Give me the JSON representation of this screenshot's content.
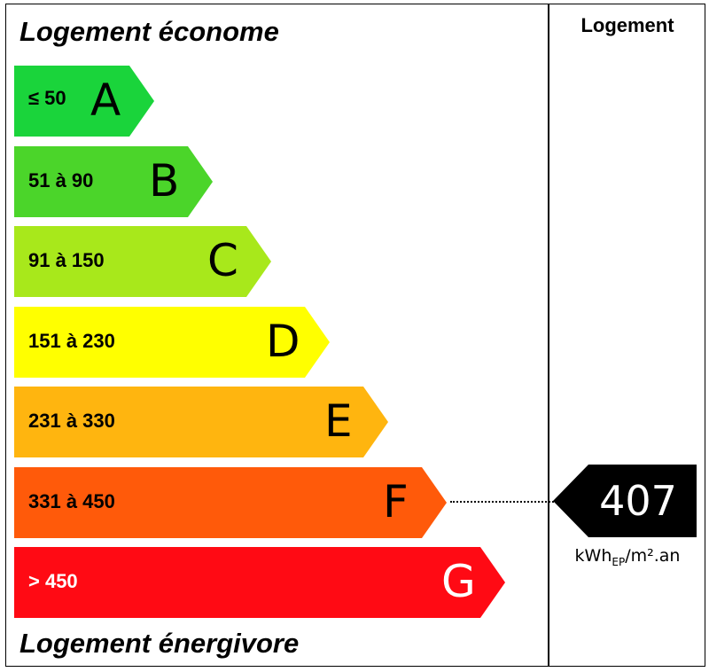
{
  "headings": {
    "top": "Logement économe",
    "bottom": "Logement énergivore",
    "column": "Logement"
  },
  "classes": [
    {
      "letter": "A",
      "range": "≤ 50",
      "color": "#1ad43b",
      "text_color": "#000000"
    },
    {
      "letter": "B",
      "range": "51 à 90",
      "color": "#4bd52a",
      "text_color": "#000000"
    },
    {
      "letter": "C",
      "range": "91 à 150",
      "color": "#a8e81b",
      "text_color": "#000000"
    },
    {
      "letter": "D",
      "range": "151 à 230",
      "color": "#ffff00",
      "text_color": "#000000"
    },
    {
      "letter": "E",
      "range": "231 à 330",
      "color": "#ffb50f",
      "text_color": "#000000"
    },
    {
      "letter": "F",
      "range": "331 à 450",
      "color": "#ff5a0a",
      "text_color": "#000000"
    },
    {
      "letter": "G",
      "range": "> 450",
      "color": "#ff0a14",
      "text_color": "#ffffff"
    }
  ],
  "rating": {
    "value": "407",
    "class": "F",
    "unit_main": "kWh",
    "unit_sub": "EP",
    "unit_rest": "/m².an",
    "color": "#000000"
  }
}
